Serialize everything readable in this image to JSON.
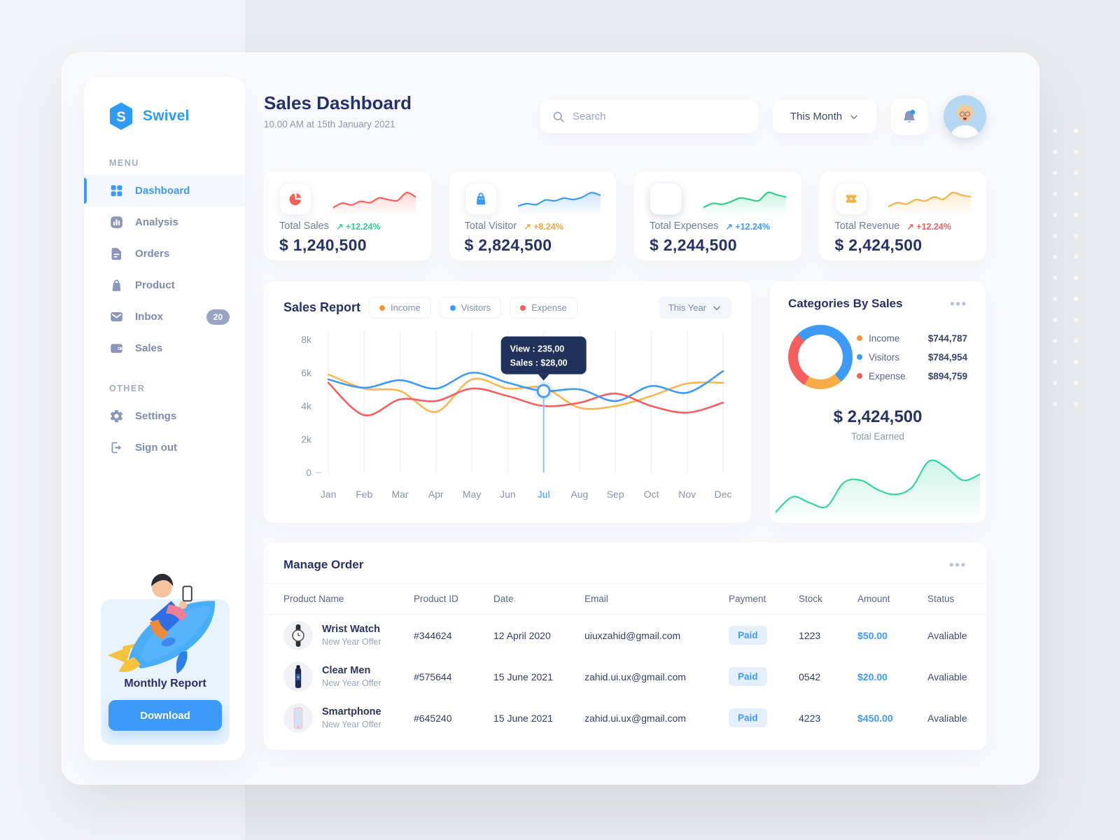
{
  "sidebar": {
    "brand": "Swivel",
    "menu_label": "MENU",
    "other_label": "OTHER",
    "items": [
      {
        "label": "Dashboard"
      },
      {
        "label": "Analysis"
      },
      {
        "label": "Orders"
      },
      {
        "label": "Product"
      },
      {
        "label": "Inbox",
        "badge": "20"
      },
      {
        "label": "Sales"
      }
    ],
    "other_items": [
      {
        "label": "Settings"
      },
      {
        "label": "Sign out"
      }
    ],
    "report": {
      "title": "Monthly Report",
      "button": "Download"
    }
  },
  "header": {
    "title": "Sales Dashboard",
    "subtitle": "10.00 AM at 15th January 2021",
    "search_placeholder": "Search",
    "period": "This Month"
  },
  "stats": [
    {
      "label": "Total Sales",
      "arrow": "↗",
      "delta": "+12.24%",
      "delta_color": "#2fd08f",
      "value": "$ 1,240,500",
      "icon_color": "#f66058"
    },
    {
      "label": "Total Visitor",
      "arrow": "↗",
      "delta": "+8.24%",
      "delta_color": "#f8a43b",
      "value": "$ 2,824,500",
      "icon_color": "#3d9af8"
    },
    {
      "label": "Total Expenses",
      "arrow": "↗",
      "delta": "+12.24%",
      "delta_color": "#3d9af8",
      "value": "$ 2,244,500",
      "icon_color": "#2ece8e"
    },
    {
      "label": "Total Revenue",
      "arrow": "↗",
      "delta": "+12.24%",
      "delta_color": "#f65d5d",
      "value": "$ 2,424,500",
      "icon_color": "#f7b044"
    }
  ],
  "sales_report": {
    "title": "Sales Report",
    "period": "This Year",
    "legend": [
      {
        "label": "Income",
        "color": "#f9943f"
      },
      {
        "label": "Visitors",
        "color": "#3d9af8"
      },
      {
        "label": "Expense",
        "color": "#f65d5d"
      }
    ]
  },
  "categories": {
    "title": "Categories By Sales",
    "legend": [
      {
        "label": "Income",
        "color": "#f9943f",
        "value": "$744,787"
      },
      {
        "label": "Visitors",
        "color": "#3d9af8",
        "value": "$784,954"
      },
      {
        "label": "Expense",
        "color": "#f65d5d",
        "value": "$894,759"
      }
    ],
    "total": "$ 2,424,500",
    "total_label": "Total Earned"
  },
  "orders": {
    "title": "Manage Order",
    "columns": [
      "Product Name",
      "Product ID",
      "Date",
      "Email",
      "Payment",
      "Stock",
      "Amount",
      "Status"
    ],
    "rows": [
      {
        "name": "Wrist Watch",
        "offer": "New Year Offer",
        "id": "#344624",
        "date": "12 April 2020",
        "email": "uiuxzahid@gmail.com",
        "payment": "Paid",
        "stock": "1223",
        "amount": "$50.00",
        "status": "Avaliable"
      },
      {
        "name": "Clear Men",
        "offer": "New Year Offer",
        "id": "#575644",
        "date": "15 June 2021",
        "email": "zahid.ui.ux@gmail.com",
        "payment": "Paid",
        "stock": "0542",
        "amount": "$20.00",
        "status": "Avaliable"
      },
      {
        "name": "Smartphone",
        "offer": "New Year Offer",
        "id": "#645240",
        "date": "15 June 2021",
        "email": "zahid.ui.ux@gmail.com",
        "payment": "Paid",
        "stock": "4223",
        "amount": "$450.00",
        "status": "Avaliable"
      }
    ]
  },
  "chart_data": [
    {
      "name": "sales-report",
      "type": "line",
      "title": "Sales Report",
      "x": [
        "Jan",
        "Feb",
        "Mar",
        "Apr",
        "May",
        "Jun",
        "Jul",
        "Aug",
        "Sep",
        "Oct",
        "Nov",
        "Dec"
      ],
      "yticks": [
        [
          "0",
          0
        ],
        [
          "2k",
          2000
        ],
        [
          "4k",
          4000
        ],
        [
          "6k",
          6000
        ],
        [
          "8k",
          8000
        ]
      ],
      "ylim": [
        0,
        8000
      ],
      "grid": "vertical",
      "legend_position": "top",
      "highlight_month": "Jul",
      "series": [
        {
          "name": "Income",
          "color": "#fbb64f",
          "values": [
            5900,
            5050,
            4900,
            3650,
            5600,
            5050,
            5100,
            3900,
            4000,
            4600,
            5350,
            5400
          ]
        },
        {
          "name": "Expense",
          "color": "#f65d5d",
          "values": [
            5400,
            3450,
            4400,
            4300,
            5050,
            4600,
            4000,
            4200,
            4750,
            4000,
            3600,
            4200
          ]
        },
        {
          "name": "Visitors",
          "color": "#3d9af8",
          "values": [
            5600,
            5100,
            5550,
            5050,
            6000,
            5400,
            4900,
            5000,
            4300,
            5200,
            4800,
            6100
          ]
        }
      ],
      "tooltip": {
        "month_index": 6,
        "series": "Visitors",
        "lines": [
          "View : 235,00",
          "Sales : $28,00"
        ],
        "bg": "#20315c"
      }
    },
    {
      "name": "categories-donut",
      "type": "pie",
      "labels": [
        "Income",
        "Visitors",
        "Expense"
      ],
      "values": [
        744787,
        784954,
        894759
      ],
      "display_arcs": [
        {
          "color": "#3d9af8",
          "from_deg": -45,
          "to_deg": 140
        },
        {
          "color": "#f9ab49",
          "from_deg": 140,
          "to_deg": 210
        },
        {
          "color": "#f65d5d",
          "from_deg": 210,
          "to_deg": 315
        }
      ]
    },
    {
      "name": "total-earned-spark",
      "type": "area",
      "color": "#35d69b",
      "values": [
        0.6,
        1.9,
        1.4,
        1.1,
        3.1,
        3.3,
        2.5,
        2.1,
        2.7,
        4.9,
        4.4,
        3.3,
        3.8
      ]
    },
    {
      "name": "stat-sparklines",
      "type": "line",
      "series": [
        {
          "name": "Total Sales",
          "color": "#f66058",
          "values": [
            1.2,
            2.2,
            1.8,
            2.6,
            2.3,
            3.4,
            3.0,
            2.8,
            4.6,
            3.6
          ]
        },
        {
          "name": "Total Visitor",
          "color": "#3d9af8",
          "values": [
            1.5,
            2.0,
            1.8,
            2.8,
            2.6,
            3.2,
            2.9,
            3.4,
            4.4,
            3.8
          ]
        },
        {
          "name": "Total Expenses",
          "color": "#2ece8e",
          "values": [
            1.2,
            2.1,
            1.9,
            2.5,
            3.3,
            3.0,
            2.7,
            4.5,
            4.0,
            3.5
          ]
        },
        {
          "name": "Total Revenue",
          "color": "#f7b044",
          "values": [
            1.4,
            2.3,
            2.0,
            3.0,
            2.7,
            3.6,
            3.1,
            4.6,
            4.0,
            3.7
          ]
        }
      ]
    }
  ]
}
